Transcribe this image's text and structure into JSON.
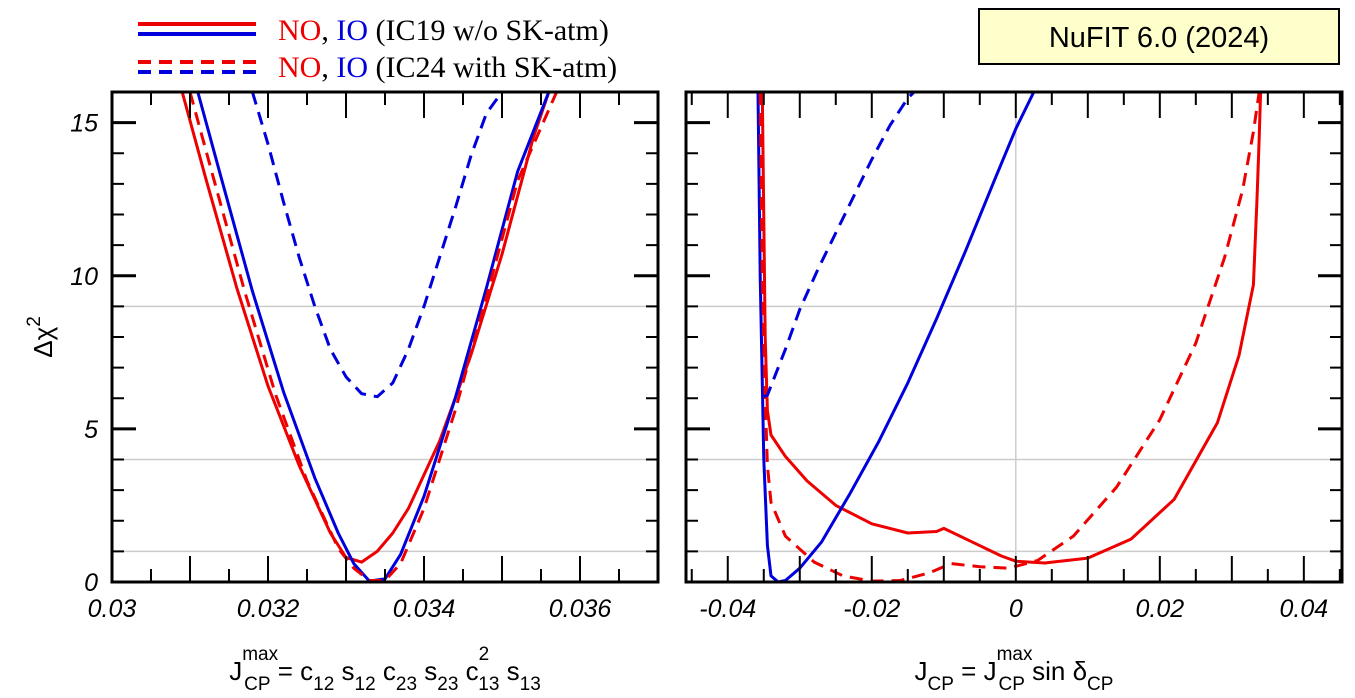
{
  "chart_data": [
    {
      "type": "line",
      "panel": "left",
      "xlabel": "J_CP^max = c12 s12 c23 s23 c13^2 s13",
      "ylabel": "Δχ²",
      "xlim": [
        0.03,
        0.037
      ],
      "ylim": [
        0,
        16
      ],
      "xticks": [
        0.03,
        0.032,
        0.034,
        0.036
      ],
      "xtick_labels": [
        "0.03",
        "0.032",
        "0.034",
        "0.036"
      ],
      "yticks": [
        0,
        5,
        10,
        15
      ],
      "ytick_labels": [
        "0",
        "5",
        "10",
        "15"
      ],
      "grid_y": [
        1,
        4,
        9
      ],
      "grid_x": [],
      "series": [
        {
          "name": "NO (IC19 w/o SK-atm)",
          "color": "#ee0000",
          "dash": "solid",
          "x": [
            0.0309,
            0.0312,
            0.0316,
            0.032,
            0.0324,
            0.0328,
            0.033,
            0.0332,
            0.0334,
            0.0336,
            0.0338,
            0.0342,
            0.0346,
            0.035,
            0.0354,
            0.0356
          ],
          "y": [
            16,
            13.2,
            9.6,
            6.4,
            3.8,
            1.6,
            0.8,
            0.65,
            1.0,
            1.6,
            2.4,
            4.6,
            7.4,
            10.7,
            14.5,
            16
          ]
        },
        {
          "name": "IO (IC19 w/o SK-atm)",
          "color": "#0000dd",
          "dash": "solid",
          "x": [
            0.0311,
            0.0314,
            0.0318,
            0.0322,
            0.0326,
            0.0329,
            0.0331,
            0.0333,
            0.0335,
            0.0337,
            0.034,
            0.0344,
            0.0348,
            0.0352,
            0.0356
          ],
          "y": [
            16,
            13.2,
            9.5,
            6.2,
            3.4,
            1.6,
            0.6,
            0.03,
            0.1,
            0.9,
            2.8,
            6.0,
            9.6,
            13.4,
            16
          ]
        },
        {
          "name": "NO (IC24 with SK-atm)",
          "color": "#ee0000",
          "dash": "dashed",
          "x": [
            0.031,
            0.0313,
            0.0317,
            0.0321,
            0.0325,
            0.0329,
            0.0331,
            0.0333,
            0.0335,
            0.0337,
            0.034,
            0.0344,
            0.0348,
            0.0352,
            0.0357
          ],
          "y": [
            16,
            13.2,
            9.5,
            6.1,
            3.3,
            1.1,
            0.45,
            0.05,
            0.05,
            0.6,
            2.4,
            5.6,
            9.3,
            13.1,
            16
          ]
        },
        {
          "name": "IO (IC24 with SK-atm)",
          "color": "#0000dd",
          "dash": "dashed",
          "x": [
            0.0318,
            0.032,
            0.0322,
            0.0324,
            0.0326,
            0.0328,
            0.033,
            0.0332,
            0.0334,
            0.0336,
            0.0338,
            0.034,
            0.0342,
            0.0344,
            0.0346,
            0.0348,
            0.035
          ],
          "y": [
            16,
            14.3,
            12.4,
            10.6,
            9.0,
            7.6,
            6.7,
            6.15,
            6.05,
            6.5,
            7.6,
            9.0,
            10.6,
            12.2,
            13.9,
            15.3,
            16
          ]
        }
      ]
    },
    {
      "type": "line",
      "panel": "right",
      "xlabel": "J_CP = J_CP^max sin δ_CP",
      "ylabel": "Δχ²",
      "xlim": [
        -0.0458,
        0.0453
      ],
      "ylim": [
        0,
        16
      ],
      "xticks": [
        -0.04,
        -0.02,
        0,
        0.02,
        0.04
      ],
      "xtick_labels": [
        "-0.04",
        "-0.02",
        "0",
        "0.02",
        "0.04"
      ],
      "yticks": [
        0,
        5,
        10,
        15
      ],
      "grid_y": [
        1,
        4,
        9
      ],
      "grid_x": [
        0
      ],
      "series": [
        {
          "name": "NO (IC19 w/o SK-atm)",
          "color": "#ee0000",
          "dash": "solid",
          "x": [
            -0.0352,
            -0.0348,
            -0.0345,
            -0.034,
            -0.032,
            -0.029,
            -0.025,
            -0.02,
            -0.015,
            -0.011,
            -0.01,
            -0.006,
            -0.002,
            0.0,
            0.004,
            0.01,
            0.016,
            0.022,
            0.028,
            0.031,
            0.033,
            0.0335,
            0.0338,
            0.034
          ],
          "y": [
            16,
            8.0,
            5.6,
            4.8,
            4.1,
            3.3,
            2.5,
            1.9,
            1.6,
            1.65,
            1.75,
            1.3,
            0.85,
            0.68,
            0.62,
            0.78,
            1.4,
            2.7,
            5.2,
            7.4,
            9.7,
            12.5,
            14.5,
            16
          ]
        },
        {
          "name": "IO (IC19 w/o SK-atm)",
          "color": "#0000dd",
          "dash": "solid",
          "x": [
            -0.0358,
            -0.0355,
            -0.035,
            -0.0345,
            -0.034,
            -0.033,
            -0.032,
            -0.03,
            -0.027,
            -0.023,
            -0.019,
            -0.015,
            -0.011,
            -0.007,
            -0.003,
            0.0,
            0.0025,
            0.004
          ],
          "y": [
            16,
            10,
            4,
            1.2,
            0.2,
            0.0,
            0.05,
            0.45,
            1.3,
            2.9,
            4.6,
            6.5,
            8.6,
            10.8,
            13.1,
            14.8,
            16,
            16.8
          ]
        },
        {
          "name": "NO (IC24 with SK-atm)",
          "color": "#ee0000",
          "dash": "dashed",
          "x": [
            -0.0355,
            -0.0352,
            -0.0348,
            -0.0345,
            -0.034,
            -0.032,
            -0.028,
            -0.024,
            -0.02,
            -0.016,
            -0.012,
            -0.009,
            -0.005,
            -0.001,
            0.003,
            0.008,
            0.014,
            0.02,
            0.025,
            0.029,
            0.0315,
            0.033,
            0.0338
          ],
          "y": [
            16,
            10.0,
            6.0,
            3.8,
            2.6,
            1.5,
            0.65,
            0.2,
            0.03,
            0.05,
            0.3,
            0.6,
            0.5,
            0.45,
            0.7,
            1.5,
            3.1,
            5.3,
            7.8,
            10.6,
            12.8,
            14.7,
            16
          ]
        },
        {
          "name": "IO (IC24 with SK-atm)",
          "color": "#0000dd",
          "dash": "dashed",
          "x": [
            -0.035,
            -0.0345,
            -0.0335,
            -0.032,
            -0.03,
            -0.0275,
            -0.025,
            -0.0225,
            -0.02,
            -0.0175,
            -0.015,
            -0.0128
          ],
          "y": [
            6.05,
            6.1,
            6.7,
            7.6,
            8.9,
            10.2,
            11.4,
            12.6,
            13.8,
            14.9,
            15.8,
            16.3
          ]
        }
      ]
    }
  ],
  "legend": {
    "row1": {
      "no": "NO",
      "sep": ", ",
      "io": "IO",
      "rest": " (IC19 w/o SK-atm)",
      "style": "solid"
    },
    "row2": {
      "no": "NO",
      "sep": ", ",
      "io": "IO",
      "rest": " (IC24 with SK-atm)",
      "style": "dashed"
    }
  },
  "badge": {
    "text": "NuFIT 6.0 (2024)",
    "bg": "#ffffcc"
  },
  "colors": {
    "red": "#ee0000",
    "blue": "#0000dd",
    "grid": "#cccccc"
  },
  "axis_titles": {
    "y": {
      "main": "Δχ",
      "sup": "2"
    },
    "left_x": {
      "J": "J",
      "J_sup": "max",
      "J_sub": "CP",
      "eq": " = c",
      "s1": "12",
      "t2": " s",
      "s2": "12",
      "t3": " c",
      "s3": "23",
      "t4": " s",
      "s4": "23",
      "t5": " c",
      "s5sup": "2",
      "s5sub": "13",
      "t6": " s",
      "s6": "13"
    },
    "right_x": {
      "J": "J",
      "J_sub": "CP",
      "eq": " = J",
      "J2_sup": "max",
      "J2_sub": "CP",
      "sin": " sin δ",
      "d_sub": "CP"
    }
  }
}
